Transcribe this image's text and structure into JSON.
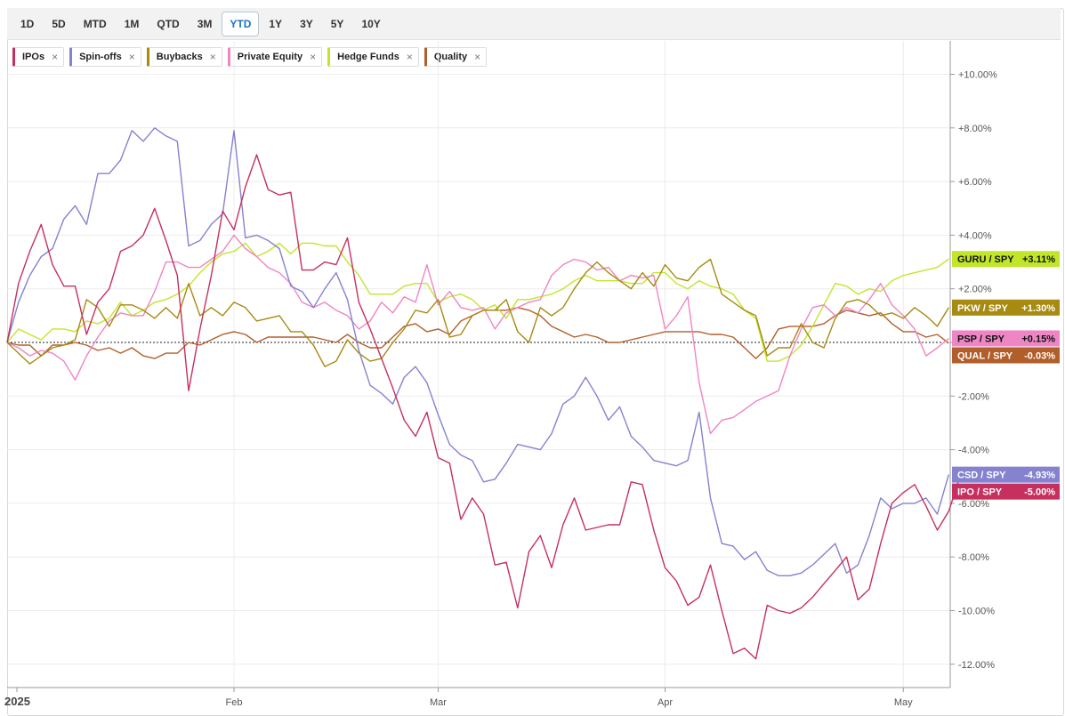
{
  "toolbar": {
    "ranges": [
      "1D",
      "5D",
      "MTD",
      "1M",
      "QTD",
      "3M",
      "YTD",
      "1Y",
      "3Y",
      "5Y",
      "10Y"
    ],
    "active": "YTD"
  },
  "legend": [
    {
      "label": "IPOs",
      "color": "#c5305f"
    },
    {
      "label": "Spin-offs",
      "color": "#8582d0"
    },
    {
      "label": "Buybacks",
      "color": "#a78a10"
    },
    {
      "label": "Private Equity",
      "color": "#ee85c4"
    },
    {
      "label": "Hedge Funds",
      "color": "#c1e629"
    },
    {
      "label": "Quality",
      "color": "#b15e2a"
    }
  ],
  "legend_remove_icon": "close-icon",
  "chart_data": {
    "type": "line",
    "x_unit": "trading day index (0 = Jan 2, 2025)",
    "x_ticks": [
      {
        "label": "2025",
        "day": 0
      },
      {
        "label": "Feb",
        "day": 20
      },
      {
        "label": "Mar",
        "day": 38
      },
      {
        "label": "Apr",
        "day": 58
      },
      {
        "label": "May",
        "day": 79
      }
    ],
    "ylim": [
      -12.5,
      11.2
    ],
    "y_ticks": [
      "+10.00%",
      "+8.00%",
      "+6.00%",
      "+4.00%",
      "+2.00%",
      "0",
      "-2.00%",
      "-4.00%",
      "-6.00%",
      "-8.00%",
      "-10.00%",
      "-12.00%"
    ],
    "y_tick_values": [
      10,
      8,
      6,
      4,
      2,
      0,
      -2,
      -4,
      -6,
      -8,
      -10,
      -12
    ],
    "zero_line": true,
    "series": [
      {
        "name": "IPOs",
        "badge": "IPO / SPY",
        "last": "-5.00%",
        "last_value": -5.0,
        "color": "#c5305f",
        "values": [
          0,
          2.2,
          3.4,
          4.4,
          2.9,
          2.1,
          2.1,
          0.3,
          1.5,
          2.0,
          3.4,
          3.6,
          4.0,
          5.0,
          3.8,
          2.5,
          -1.8,
          0.5,
          2.5,
          4.9,
          4.2,
          5.8,
          7.0,
          5.7,
          5.5,
          5.6,
          2.7,
          2.7,
          3.0,
          2.9,
          3.9,
          1.5,
          0.5,
          -0.6,
          -1.7,
          -2.9,
          -3.5,
          -2.6,
          -4.3,
          -4.5,
          -6.6,
          -5.8,
          -6.4,
          -8.3,
          -8.2,
          -9.9,
          -7.8,
          -7.2,
          -8.4,
          -6.8,
          -5.8,
          -7.0,
          -6.9,
          -6.8,
          -6.8,
          -5.2,
          -5.3,
          -7.0,
          -8.4,
          -8.9,
          -9.8,
          -9.5,
          -8.3,
          -10.0,
          -11.6,
          -11.4,
          -11.8,
          -9.8,
          -10.0,
          -10.1,
          -9.9,
          -9.5,
          -9.0,
          -8.5,
          -8.0,
          -9.6,
          -9.2,
          -7.5,
          -6.0,
          -5.6,
          -5.3,
          -6.1,
          -7.0,
          -6.3,
          -5.0
        ]
      },
      {
        "name": "Spin-offs",
        "badge": "CSD / SPY",
        "last": "-4.93%",
        "last_value": -4.93,
        "color": "#8582d0",
        "values": [
          0,
          1.5,
          2.5,
          3.2,
          3.5,
          4.6,
          5.1,
          4.4,
          6.3,
          6.3,
          6.8,
          7.9,
          7.5,
          8.0,
          7.7,
          7.5,
          3.6,
          3.8,
          4.4,
          4.8,
          7.9,
          3.9,
          4.0,
          3.8,
          3.5,
          2.1,
          1.9,
          1.3,
          2.0,
          2.6,
          1.6,
          -0.3,
          -1.6,
          -1.9,
          -2.3,
          -1.3,
          -0.9,
          -1.5,
          -2.7,
          -3.8,
          -4.2,
          -4.4,
          -5.2,
          -5.1,
          -4.5,
          -3.8,
          -3.9,
          -4.0,
          -3.4,
          -2.3,
          -2.0,
          -1.3,
          -2.0,
          -2.9,
          -2.4,
          -3.5,
          -3.9,
          -4.4,
          -4.5,
          -4.6,
          -4.4,
          -2.6,
          -5.8,
          -7.5,
          -7.6,
          -8.1,
          -7.8,
          -8.5,
          -8.7,
          -8.7,
          -8.6,
          -8.3,
          -7.9,
          -7.5,
          -8.6,
          -8.3,
          -7.2,
          -5.8,
          -6.2,
          -6.0,
          -6.0,
          -5.8,
          -6.4,
          -4.93
        ]
      },
      {
        "name": "Buybacks",
        "badge": "PKW / SPY",
        "last": "+1.30%",
        "last_value": 1.3,
        "color": "#a78a10",
        "values": [
          0,
          -0.4,
          -0.8,
          -0.5,
          -0.2,
          -0.1,
          0.1,
          1.6,
          1.3,
          0.6,
          1.4,
          1.4,
          1.2,
          0.9,
          1.3,
          0.9,
          2.2,
          1.0,
          1.3,
          1.0,
          1.5,
          1.3,
          0.8,
          0.9,
          1.0,
          0.4,
          0.4,
          -0.1,
          -0.9,
          -0.7,
          0.1,
          -0.4,
          -0.7,
          -0.6,
          0.0,
          0.5,
          1.2,
          1.1,
          1.6,
          0.2,
          0.3,
          1.0,
          1.2,
          1.2,
          1.6,
          0.4,
          0.0,
          1.3,
          1.0,
          1.3,
          2.0,
          2.6,
          3.0,
          2.6,
          2.3,
          2.0,
          2.6,
          2.1,
          2.9,
          2.4,
          2.3,
          2.8,
          3.1,
          1.8,
          1.5,
          1.2,
          1.0,
          -0.5,
          -0.2,
          -0.2,
          0.7,
          0.0,
          -0.2,
          0.9,
          1.5,
          1.6,
          1.4,
          1.0,
          1.1,
          0.9,
          1.3,
          1.0,
          0.6,
          1.3
        ]
      },
      {
        "name": "Private Equity",
        "badge": "PSP / SPY",
        "last": "+0.15%",
        "last_value": 0.15,
        "color": "#ee85c4",
        "values": [
          0,
          -0.2,
          -0.5,
          -0.3,
          -0.4,
          -0.7,
          -1.4,
          -0.5,
          0.2,
          0.8,
          1.1,
          1.0,
          1.0,
          1.9,
          3.0,
          3.0,
          2.8,
          2.8,
          3.1,
          3.4,
          4.0,
          3.5,
          3.2,
          2.8,
          2.6,
          2.2,
          1.5,
          1.3,
          1.5,
          1.2,
          1.0,
          0.5,
          0.8,
          1.5,
          1.1,
          1.7,
          1.5,
          2.9,
          1.4,
          1.9,
          1.3,
          1.2,
          1.3,
          0.5,
          1.1,
          1.3,
          1.5,
          1.6,
          2.5,
          2.9,
          3.1,
          3.0,
          2.7,
          2.8,
          2.3,
          2.5,
          2.4,
          2.5,
          0.5,
          1.0,
          1.7,
          -1.5,
          -3.4,
          -2.9,
          -2.8,
          -2.5,
          -2.2,
          -2.0,
          -1.8,
          -0.5,
          0.5,
          1.3,
          1.4,
          1.0,
          1.3,
          1.1,
          1.6,
          2.2,
          1.4,
          1.0,
          0.5,
          -0.5,
          -0.2,
          0.15
        ]
      },
      {
        "name": "Hedge Funds",
        "badge": "GURU / SPY",
        "last": "+3.11%",
        "last_value": 3.11,
        "color": "#c1e629",
        "values": [
          0,
          0.5,
          0.3,
          0.1,
          0.5,
          0.5,
          0.4,
          0.8,
          0.7,
          0.9,
          1.5,
          1.0,
          1.2,
          1.5,
          1.6,
          1.8,
          2.1,
          2.6,
          3.0,
          3.3,
          3.4,
          3.7,
          3.2,
          3.4,
          3.7,
          3.3,
          3.7,
          3.7,
          3.6,
          3.6,
          3.0,
          2.5,
          1.8,
          1.8,
          1.8,
          2.1,
          2.2,
          2.2,
          1.5,
          1.7,
          1.8,
          1.6,
          1.2,
          1.4,
          0.9,
          1.6,
          1.6,
          1.7,
          1.8,
          2.0,
          2.3,
          2.5,
          2.3,
          2.3,
          2.3,
          2.2,
          2.2,
          2.6,
          2.6,
          2.2,
          2.0,
          2.3,
          2.1,
          2.0,
          1.8,
          1.2,
          0.9,
          -0.7,
          -0.7,
          -0.5,
          -0.1,
          0.6,
          1.4,
          2.2,
          2.1,
          1.8,
          2.0,
          1.9,
          2.3,
          2.5,
          2.6,
          2.7,
          2.8,
          3.11
        ]
      },
      {
        "name": "Quality",
        "badge": "QUAL / SPY",
        "last": "-0.03%",
        "last_value": -0.03,
        "color": "#b15e2a",
        "values": [
          0,
          -0.1,
          -0.1,
          -0.5,
          -0.1,
          -0.1,
          0.0,
          -0.1,
          -0.3,
          -0.2,
          -0.4,
          -0.2,
          -0.5,
          -0.6,
          -0.4,
          -0.4,
          0.0,
          -0.1,
          0.1,
          0.3,
          0.4,
          0.3,
          0.0,
          0.2,
          0.2,
          0.2,
          0.2,
          0.2,
          0.1,
          0.0,
          0.3,
          0.0,
          -0.2,
          -0.2,
          0.2,
          0.6,
          0.7,
          0.4,
          0.5,
          0.3,
          0.8,
          1.0,
          1.2,
          1.2,
          1.2,
          1.3,
          1.2,
          1.0,
          0.6,
          0.4,
          0.2,
          0.3,
          0.2,
          0.0,
          0.0,
          0.1,
          0.2,
          0.3,
          0.4,
          0.4,
          0.4,
          0.4,
          0.3,
          0.3,
          0.2,
          -0.2,
          -0.6,
          -0.2,
          0.5,
          0.6,
          0.6,
          0.6,
          0.7,
          1.0,
          1.2,
          1.1,
          1.0,
          1.1,
          0.7,
          0.4,
          0.4,
          0.2,
          0.3,
          -0.03
        ]
      }
    ]
  }
}
